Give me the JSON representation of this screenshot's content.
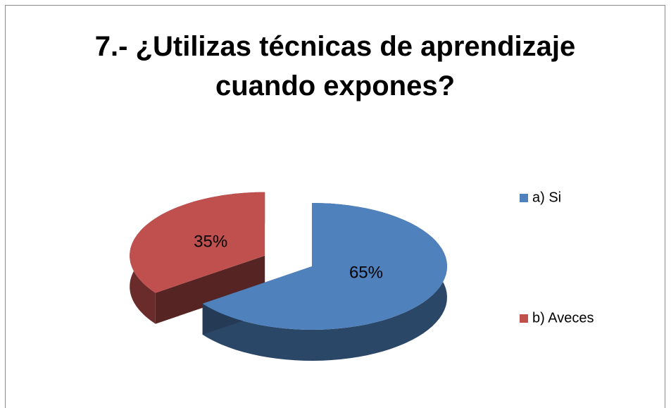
{
  "chart_data": {
    "type": "pie",
    "title": "7.- ¿Utilizas técnicas de aprendizaje cuando expones?",
    "categories": [
      "a) Si",
      "b) Aveces"
    ],
    "values": [
      65,
      35
    ],
    "value_labels": [
      "65%",
      "35%"
    ],
    "colors": [
      "#4f81bd",
      "#c0504d"
    ],
    "legend": "right"
  }
}
